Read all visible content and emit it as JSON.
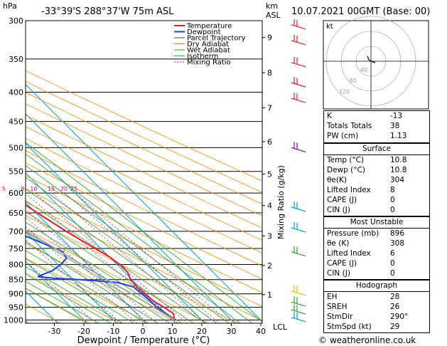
{
  "header": {
    "pressure_unit": "hPa",
    "location": "-33°39'S 288°37'W 75m ASL",
    "km_label": "km",
    "asl_label": "ASL",
    "datetime": "10.07.2021 00GMT (Base: 00)"
  },
  "legend": [
    "Temperature",
    "Dewpoint",
    "Parcel Trajectory",
    "Dry Adiabat",
    "Wet Adiabat",
    "Isotherm",
    "Mixing Ratio"
  ],
  "colors": {
    "temperature": "#e8192c",
    "dewpoint": "#1f3fd6",
    "parcel": "#a0a0a0",
    "dry_adiabat": "#f08c00",
    "wet_adiabat": "#1aa81a",
    "isotherm": "#00a0e0",
    "mixing_ratio": "#d0006f",
    "wind_high": "#e8192c",
    "wind_mid": "#7a00c8",
    "wind_low1": "#00a0c8",
    "wind_low2": "#30a030",
    "wind_surface": "#c8c800"
  },
  "chart_data": {
    "type": "line",
    "xlabel": "Dewpoint / Temperature (°C)",
    "ylabel_left": "hPa",
    "ylabel_right": "Mixing Ratio (g/kg)",
    "pressure_levels": [
      300,
      350,
      400,
      450,
      500,
      550,
      600,
      650,
      700,
      750,
      800,
      850,
      900,
      950,
      1000
    ],
    "x_ticks": [
      -30,
      -20,
      -10,
      0,
      10,
      20,
      30,
      40
    ],
    "xlim": [
      -40,
      40
    ],
    "km_ticks": [
      {
        "km": "1",
        "p": 903
      },
      {
        "km": "2",
        "p": 803
      },
      {
        "km": "3",
        "p": 713
      },
      {
        "km": "4",
        "p": 631
      },
      {
        "km": "5",
        "p": 556
      },
      {
        "km": "6",
        "p": 488
      },
      {
        "km": "7",
        "p": 426
      },
      {
        "km": "8",
        "p": 370
      },
      {
        "km": "9",
        "p": 321
      }
    ],
    "lcl_label": "LCL",
    "mixing_ratio_labels": [
      "1",
      "2",
      "3",
      "4",
      "5",
      "8",
      "10",
      "15",
      "20",
      "25"
    ],
    "mixing_ratio_values": [
      1,
      2,
      3,
      4,
      5,
      8,
      10,
      15,
      20,
      25
    ],
    "series": [
      {
        "name": "Temperature",
        "points": [
          [
            1000,
            10.8
          ],
          [
            975,
            12.5
          ],
          [
            950,
            11.5
          ],
          [
            925,
            10
          ],
          [
            900,
            9.5
          ],
          [
            875,
            9.2
          ],
          [
            850,
            9.5
          ],
          [
            825,
            11
          ],
          [
            800,
            11
          ],
          [
            775,
            10
          ],
          [
            750,
            8
          ],
          [
            700,
            4
          ],
          [
            650,
            0.5
          ],
          [
            600,
            -3
          ],
          [
            550,
            -8
          ],
          [
            500,
            -14
          ],
          [
            450,
            -20
          ],
          [
            400,
            -28
          ],
          [
            380,
            -30
          ],
          [
            350,
            -35
          ],
          [
            320,
            -40
          ],
          [
            300,
            -44
          ]
        ]
      },
      {
        "name": "Dewpoint",
        "points": [
          [
            1000,
            10.8
          ],
          [
            975,
            10
          ],
          [
            950,
            9
          ],
          [
            925,
            9
          ],
          [
            900,
            8.5
          ],
          [
            875,
            8
          ],
          [
            860,
            4
          ],
          [
            850,
            -8
          ],
          [
            845,
            -16
          ],
          [
            840,
            -21
          ],
          [
            820,
            -14
          ],
          [
            800,
            -9
          ],
          [
            780,
            -5
          ],
          [
            760,
            -4
          ],
          [
            740,
            -7
          ],
          [
            710,
            -12
          ],
          [
            700,
            -16
          ],
          [
            650,
            -18
          ],
          [
            600,
            -22
          ],
          [
            550,
            -25
          ],
          [
            500,
            -27
          ],
          [
            490,
            -31
          ],
          [
            450,
            -40
          ],
          [
            400,
            -53
          ],
          [
            385,
            -45
          ],
          [
            375,
            -35
          ],
          [
            360,
            -33
          ],
          [
            350,
            -34
          ],
          [
            320,
            -38
          ],
          [
            300,
            -44
          ]
        ]
      },
      {
        "name": "Parcel Trajectory",
        "points": [
          [
            1000,
            10.8
          ],
          [
            950,
            8
          ],
          [
            900,
            5
          ],
          [
            850,
            1.5
          ],
          [
            800,
            -2
          ],
          [
            750,
            -5.5
          ],
          [
            700,
            -9.5
          ],
          [
            650,
            -13.5
          ],
          [
            600,
            -18
          ],
          [
            550,
            -23
          ],
          [
            500,
            -28.5
          ],
          [
            450,
            -35
          ],
          [
            400,
            -43
          ],
          [
            350,
            -51
          ],
          [
            300,
            -60
          ]
        ]
      }
    ]
  },
  "hodograph": {
    "unit_label": "kt",
    "ring_labels": [
      "40",
      "80",
      "120"
    ]
  },
  "indices": [
    {
      "label": "K",
      "value": "-13"
    },
    {
      "label": "Totals Totals",
      "value": "38"
    },
    {
      "label": "PW (cm)",
      "value": "1.13"
    }
  ],
  "surface": {
    "title": "Surface",
    "rows": [
      {
        "label": "Temp (°C)",
        "value": "10.8"
      },
      {
        "label": "Dewp (°C)",
        "value": "10.8"
      },
      {
        "label": "θe(K)",
        "value": "304"
      },
      {
        "label": "Lifted Index",
        "value": "8"
      },
      {
        "label": "CAPE (J)",
        "value": "0"
      },
      {
        "label": "CIN (J)",
        "value": "0"
      }
    ]
  },
  "most_unstable": {
    "title": "Most Unstable",
    "rows": [
      {
        "label": "Pressure (mb)",
        "value": "896"
      },
      {
        "label": "θe (K)",
        "value": "308"
      },
      {
        "label": "Lifted Index",
        "value": "6"
      },
      {
        "label": "CAPE (J)",
        "value": "0"
      },
      {
        "label": "CIN (J)",
        "value": "0"
      }
    ]
  },
  "hodograph_stats": {
    "title": "Hodograph",
    "rows": [
      {
        "label": "EH",
        "value": "28"
      },
      {
        "label": "SREH",
        "value": "26"
      },
      {
        "label": "StmDir",
        "value": "290°"
      },
      {
        "label": "StmSpd (kt)",
        "value": "29"
      }
    ]
  },
  "footer": {
    "copyright": "© weatheronline.co.uk"
  }
}
